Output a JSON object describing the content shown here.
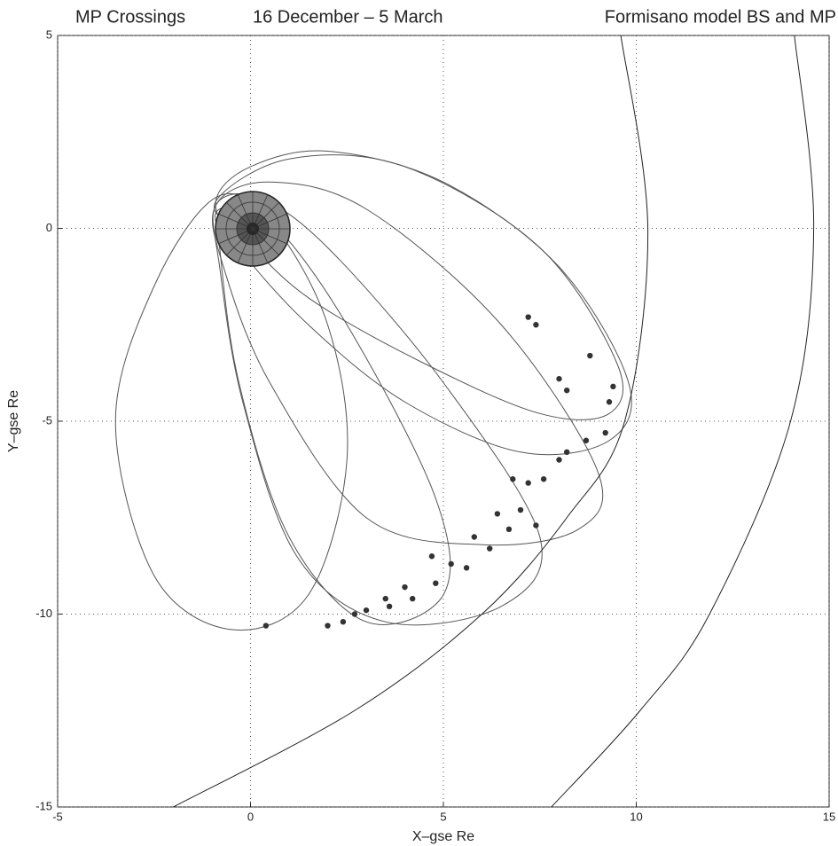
{
  "chart_data": {
    "type": "line",
    "title": "MP Crossings",
    "subtitle": "16 December – 5 March",
    "annotation": "Formisano model  BS and MP",
    "x_label": "X–gse Re",
    "y_label": "Y–gse Re",
    "xlim": [
      -5,
      15
    ],
    "ylim": [
      -15,
      5
    ],
    "xticks": [
      -5,
      0,
      5,
      10,
      15
    ],
    "yticks": [
      -15,
      -10,
      -5,
      0,
      5
    ],
    "grid": true,
    "series": [
      {
        "type": "line",
        "closed": true,
        "color": "#555555",
        "x": [
          -0.9,
          0,
          2,
          5,
          8,
          9.8,
          9.3,
          7,
          4,
          1.5,
          -0.3
        ],
        "y": [
          0.7,
          1.6,
          2.0,
          1.2,
          -1,
          -4,
          -5.5,
          -5.8,
          -4.5,
          -2.5,
          -0.5
        ]
      },
      {
        "type": "line",
        "closed": true,
        "color": "#555555",
        "x": [
          -0.9,
          1,
          4,
          7.5,
          9.5,
          9.3,
          7.5,
          4.5,
          1.5,
          -0.2
        ],
        "y": [
          0.7,
          1.8,
          1.6,
          -0.5,
          -3.5,
          -4.8,
          -4.8,
          -3.5,
          -1.8,
          -0.2
        ]
      },
      {
        "type": "line",
        "closed": true,
        "color": "#555555",
        "x": [
          -0.9,
          0.5,
          3,
          6.5,
          9,
          8.5,
          6,
          3,
          0.5,
          -0.7
        ],
        "y": [
          0.6,
          1.2,
          0.5,
          -2.5,
          -6.3,
          -7.8,
          -8.2,
          -7.5,
          -4,
          -1
        ]
      },
      {
        "type": "line",
        "closed": true,
        "color": "#555555",
        "x": [
          -0.9,
          0.2,
          2,
          5,
          7.5,
          6.5,
          3.5,
          1.2,
          -0.2,
          -0.8
        ],
        "y": [
          0.6,
          0.8,
          -0.5,
          -4,
          -8,
          -9.8,
          -10.2,
          -8.5,
          -4.5,
          -1
        ]
      },
      {
        "type": "line",
        "closed": true,
        "color": "#555555",
        "x": [
          -0.8,
          0.5,
          2.5,
          4.8,
          5,
          3,
          1,
          -0.3,
          -0.8
        ],
        "y": [
          0.5,
          0.2,
          -2.5,
          -7,
          -9.5,
          -10.2,
          -8,
          -4,
          -0.5
        ]
      },
      {
        "type": "line",
        "closed": true,
        "color": "#555555",
        "x": [
          -0.9,
          -2.5,
          -3.5,
          -2.5,
          -0.5,
          1.5,
          2.5,
          2,
          0.5
        ],
        "y": [
          0.8,
          -1.5,
          -5,
          -9,
          -10.4,
          -9.5,
          -6,
          -2.5,
          0.2
        ]
      },
      {
        "type": "line",
        "closed": false,
        "color": "#222222",
        "x": [
          9.6,
          10.3,
          9.7,
          8.2,
          6.0,
          2.7,
          -2.0
        ],
        "y": [
          5,
          0,
          -5,
          -7.5,
          -10,
          -12.5,
          -15
        ]
      },
      {
        "type": "line",
        "closed": false,
        "color": "#222222",
        "x": [
          14.1,
          14.6,
          14.0,
          11.9,
          10.1,
          7.8
        ],
        "y": [
          5,
          0,
          -5,
          -10,
          -12.5,
          -15
        ]
      },
      {
        "type": "scatter",
        "color": "#333333",
        "x": [
          7.2,
          7.4,
          8.8,
          8.0,
          8.2,
          9.4,
          9.3,
          8.7,
          9.2,
          8.0,
          8.2,
          6.8,
          7.2,
          7.6,
          7.0,
          6.7,
          7.4,
          6.2,
          5.8,
          5.6,
          4.7,
          4.8,
          4.0,
          3.6,
          3.0,
          2.7,
          2.0,
          3.5,
          4.2,
          0.4,
          6.4,
          5.2,
          2.4
        ],
        "y": [
          -2.3,
          -2.5,
          -3.3,
          -3.9,
          -4.2,
          -4.1,
          -4.5,
          -5.5,
          -5.3,
          -6.0,
          -5.8,
          -6.5,
          -6.6,
          -6.5,
          -7.3,
          -7.8,
          -7.7,
          -8.3,
          -8.0,
          -8.8,
          -8.5,
          -9.2,
          -9.3,
          -9.8,
          -9.9,
          -10.0,
          -10.3,
          -9.6,
          -9.6,
          -10.3,
          -7.4,
          -8.7,
          -10.2
        ]
      }
    ]
  }
}
